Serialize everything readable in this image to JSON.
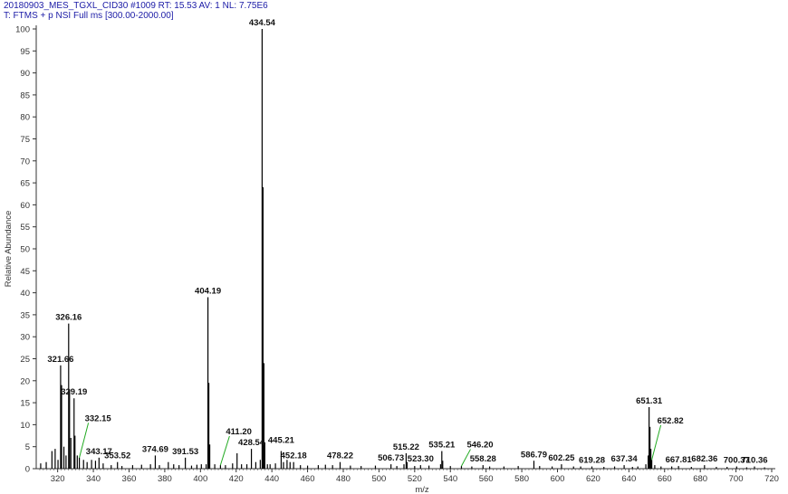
{
  "header": {
    "line1": "20180903_MES_TGXL_CID30 #1009   RT: 15.53   AV: 1   NL: 7.75E6",
    "line2": "T: FTMS + p NSI Full ms [300.00-2000.00]"
  },
  "colors": {
    "header_text": "#1a1aa6",
    "peaks": "#000000",
    "leader_lines": "#22aa22"
  },
  "chart_data": {
    "type": "bar",
    "xlabel": "m/z",
    "ylabel": "Relative Abundance",
    "xlim": [
      308,
      720
    ],
    "ylim": [
      0,
      100
    ],
    "xticks": [
      320,
      340,
      360,
      380,
      400,
      420,
      440,
      460,
      480,
      500,
      520,
      540,
      560,
      580,
      600,
      620,
      640,
      660,
      680,
      700,
      720
    ],
    "yticks": [
      0,
      5,
      10,
      15,
      20,
      25,
      30,
      35,
      40,
      45,
      50,
      55,
      60,
      65,
      70,
      75,
      80,
      85,
      90,
      95,
      100
    ],
    "peaks": [
      {
        "mz": 310.5,
        "y": 1.2
      },
      {
        "mz": 313.6,
        "y": 1.5
      },
      {
        "mz": 316.8,
        "y": 4.0
      },
      {
        "mz": 318.6,
        "y": 4.5
      },
      {
        "mz": 320.2,
        "y": 2.0
      },
      {
        "mz": 321.66,
        "y": 23.5
      },
      {
        "mz": 322.2,
        "y": 19.0
      },
      {
        "mz": 323.5,
        "y": 5.0
      },
      {
        "mz": 324.7,
        "y": 3.0
      },
      {
        "mz": 326.16,
        "y": 33.0
      },
      {
        "mz": 326.66,
        "y": 18.0
      },
      {
        "mz": 327.4,
        "y": 7.0
      },
      {
        "mz": 329.19,
        "y": 16.0
      },
      {
        "mz": 329.7,
        "y": 7.5
      },
      {
        "mz": 331.0,
        "y": 3.0
      },
      {
        "mz": 332.15,
        "y": 2.5
      },
      {
        "mz": 334.5,
        "y": 2.0
      },
      {
        "mz": 336.5,
        "y": 1.5
      },
      {
        "mz": 339.0,
        "y": 2.0
      },
      {
        "mz": 341.2,
        "y": 1.8
      },
      {
        "mz": 343.17,
        "y": 2.5
      },
      {
        "mz": 345.5,
        "y": 1.2
      },
      {
        "mz": 350.0,
        "y": 0.8
      },
      {
        "mz": 353.52,
        "y": 1.5
      },
      {
        "mz": 356.0,
        "y": 0.6
      },
      {
        "mz": 362.0,
        "y": 0.8
      },
      {
        "mz": 367.0,
        "y": 0.9
      },
      {
        "mz": 372.0,
        "y": 1.0
      },
      {
        "mz": 374.69,
        "y": 3.0
      },
      {
        "mz": 377.0,
        "y": 0.8
      },
      {
        "mz": 382.0,
        "y": 1.5
      },
      {
        "mz": 385.0,
        "y": 1.0
      },
      {
        "mz": 388.0,
        "y": 0.8
      },
      {
        "mz": 391.53,
        "y": 2.5
      },
      {
        "mz": 395.0,
        "y": 0.7
      },
      {
        "mz": 398.0,
        "y": 0.9
      },
      {
        "mz": 400.5,
        "y": 1.0
      },
      {
        "mz": 403.2,
        "y": 1.0
      },
      {
        "mz": 404.19,
        "y": 39.0
      },
      {
        "mz": 404.69,
        "y": 19.5
      },
      {
        "mz": 405.2,
        "y": 5.5
      },
      {
        "mz": 408.0,
        "y": 1.0
      },
      {
        "mz": 411.2,
        "y": 0.8
      },
      {
        "mz": 414.0,
        "y": 0.8
      },
      {
        "mz": 418.0,
        "y": 1.2
      },
      {
        "mz": 420.5,
        "y": 3.5
      },
      {
        "mz": 423.0,
        "y": 1.0
      },
      {
        "mz": 426.0,
        "y": 1.0
      },
      {
        "mz": 428.54,
        "y": 4.5
      },
      {
        "mz": 431.0,
        "y": 1.5
      },
      {
        "mz": 433.5,
        "y": 2.0
      },
      {
        "mz": 434.54,
        "y": 100.0
      },
      {
        "mz": 435.04,
        "y": 64.0
      },
      {
        "mz": 435.54,
        "y": 24.0
      },
      {
        "mz": 436.04,
        "y": 6.0
      },
      {
        "mz": 437.5,
        "y": 1.0
      },
      {
        "mz": 439.0,
        "y": 1.0
      },
      {
        "mz": 442.0,
        "y": 1.2
      },
      {
        "mz": 445.21,
        "y": 4.0
      },
      {
        "mz": 446.5,
        "y": 1.5
      },
      {
        "mz": 448.5,
        "y": 2.0
      },
      {
        "mz": 450.2,
        "y": 1.5
      },
      {
        "mz": 452.18,
        "y": 1.5
      },
      {
        "mz": 456.0,
        "y": 0.8
      },
      {
        "mz": 460.0,
        "y": 0.7
      },
      {
        "mz": 466.0,
        "y": 0.8
      },
      {
        "mz": 470.0,
        "y": 0.9
      },
      {
        "mz": 474.0,
        "y": 0.8
      },
      {
        "mz": 478.22,
        "y": 1.5
      },
      {
        "mz": 484.0,
        "y": 0.7
      },
      {
        "mz": 490.0,
        "y": 0.6
      },
      {
        "mz": 498.0,
        "y": 0.7
      },
      {
        "mz": 506.73,
        "y": 1.0
      },
      {
        "mz": 510.0,
        "y": 0.6
      },
      {
        "mz": 514.0,
        "y": 1.0
      },
      {
        "mz": 515.22,
        "y": 3.5
      },
      {
        "mz": 515.72,
        "y": 1.5
      },
      {
        "mz": 520.0,
        "y": 0.6
      },
      {
        "mz": 523.3,
        "y": 0.8
      },
      {
        "mz": 528.0,
        "y": 0.7
      },
      {
        "mz": 534.5,
        "y": 1.0
      },
      {
        "mz": 535.21,
        "y": 4.0
      },
      {
        "mz": 535.71,
        "y": 1.8
      },
      {
        "mz": 540.0,
        "y": 0.6
      },
      {
        "mz": 546.2,
        "y": 0.6
      },
      {
        "mz": 552.0,
        "y": 0.5
      },
      {
        "mz": 558.28,
        "y": 0.8
      },
      {
        "mz": 562.0,
        "y": 0.5
      },
      {
        "mz": 570.0,
        "y": 0.5
      },
      {
        "mz": 578.0,
        "y": 0.6
      },
      {
        "mz": 586.79,
        "y": 1.8
      },
      {
        "mz": 590.0,
        "y": 0.6
      },
      {
        "mz": 597.0,
        "y": 0.5
      },
      {
        "mz": 602.25,
        "y": 1.0
      },
      {
        "mz": 609.0,
        "y": 0.5
      },
      {
        "mz": 613.0,
        "y": 0.5
      },
      {
        "mz": 619.28,
        "y": 0.5
      },
      {
        "mz": 626.0,
        "y": 0.4
      },
      {
        "mz": 632.0,
        "y": 0.5
      },
      {
        "mz": 637.34,
        "y": 0.8
      },
      {
        "mz": 642.0,
        "y": 0.4
      },
      {
        "mz": 645.0,
        "y": 0.5
      },
      {
        "mz": 649.5,
        "y": 1.0
      },
      {
        "mz": 650.8,
        "y": 3.0
      },
      {
        "mz": 651.31,
        "y": 14.0
      },
      {
        "mz": 651.81,
        "y": 9.5
      },
      {
        "mz": 652.31,
        "y": 4.5
      },
      {
        "mz": 652.82,
        "y": 2.0
      },
      {
        "mz": 654.5,
        "y": 0.8
      },
      {
        "mz": 658.0,
        "y": 0.5
      },
      {
        "mz": 664.0,
        "y": 0.5
      },
      {
        "mz": 667.81,
        "y": 0.6
      },
      {
        "mz": 675.0,
        "y": 0.4
      },
      {
        "mz": 682.36,
        "y": 0.8
      },
      {
        "mz": 689.0,
        "y": 0.4
      },
      {
        "mz": 695.0,
        "y": 0.4
      },
      {
        "mz": 700.37,
        "y": 0.5
      },
      {
        "mz": 706.0,
        "y": 0.3
      },
      {
        "mz": 710.36,
        "y": 0.5
      },
      {
        "mz": 716.0,
        "y": 0.3
      }
    ],
    "annotations": [
      {
        "text": "321.66",
        "mz": 321.66,
        "y": 23.5
      },
      {
        "text": "326.16",
        "mz": 326.16,
        "y": 33.0
      },
      {
        "text": "329.19",
        "mz": 329.19,
        "y": 16.0
      },
      {
        "text": "332.15",
        "mz": 332.15,
        "y": 2.5,
        "label_y": 10.0,
        "leader": true
      },
      {
        "text": "343.17",
        "mz": 343.17,
        "y": 2.5
      },
      {
        "text": "353.52",
        "mz": 353.52,
        "y": 1.5
      },
      {
        "text": "374.69",
        "mz": 374.69,
        "y": 3.0
      },
      {
        "text": "391.53",
        "mz": 391.53,
        "y": 2.5
      },
      {
        "text": "404.19",
        "mz": 404.19,
        "y": 39.0
      },
      {
        "text": "411.20",
        "mz": 411.2,
        "y": 0.8,
        "label_y": 7.0,
        "leader": true
      },
      {
        "text": "428.54",
        "mz": 428.54,
        "y": 4.5
      },
      {
        "text": "434.54",
        "mz": 434.54,
        "y": 100.0
      },
      {
        "text": "445.21",
        "mz": 445.21,
        "y": 4.0,
        "label_y": 5.0
      },
      {
        "text": "452.18",
        "mz": 452.18,
        "y": 1.5
      },
      {
        "text": "478.22",
        "mz": 478.22,
        "y": 1.5
      },
      {
        "text": "506.73",
        "mz": 506.73,
        "y": 1.0
      },
      {
        "text": "515.22",
        "mz": 515.22,
        "y": 3.5
      },
      {
        "text": "523.30",
        "mz": 523.3,
        "y": 0.8
      },
      {
        "text": "535.21",
        "mz": 535.21,
        "y": 4.0
      },
      {
        "text": "546.20",
        "mz": 546.2,
        "y": 0.6,
        "label_y": 4.0,
        "leader": true
      },
      {
        "text": "558.28",
        "mz": 558.28,
        "y": 0.8
      },
      {
        "text": "586.79",
        "mz": 586.79,
        "y": 1.8
      },
      {
        "text": "602.25",
        "mz": 602.25,
        "y": 1.0
      },
      {
        "text": "619.28",
        "mz": 619.28,
        "y": 0.5
      },
      {
        "text": "637.34",
        "mz": 637.34,
        "y": 0.8
      },
      {
        "text": "651.31",
        "mz": 651.31,
        "y": 14.0
      },
      {
        "text": "652.82",
        "mz": 652.82,
        "y": 2.0,
        "label_y": 9.5,
        "leader": true
      },
      {
        "text": "667.81",
        "mz": 667.81,
        "y": 0.6
      },
      {
        "text": "682.36",
        "mz": 682.36,
        "y": 0.8
      },
      {
        "text": "700.37",
        "mz": 700.37,
        "y": 0.5
      },
      {
        "text": "710.36",
        "mz": 710.36,
        "y": 0.5
      }
    ]
  }
}
